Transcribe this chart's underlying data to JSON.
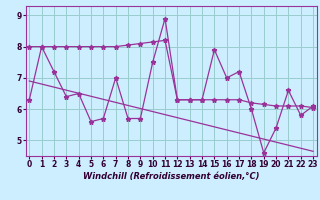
{
  "xlabel": "Windchill (Refroidissement éolien,°C)",
  "background_color": "#cceeff",
  "grid_color": "#99cccc",
  "line_color": "#993399",
  "hours": [
    0,
    1,
    2,
    3,
    4,
    5,
    6,
    7,
    8,
    9,
    10,
    11,
    12,
    13,
    14,
    15,
    16,
    17,
    18,
    19,
    20,
    21,
    22,
    23
  ],
  "values": [
    6.3,
    8.0,
    7.2,
    6.4,
    6.5,
    5.6,
    5.7,
    7.0,
    5.7,
    5.7,
    7.5,
    8.9,
    6.3,
    6.3,
    6.3,
    7.9,
    7.0,
    7.2,
    6.0,
    4.6,
    5.4,
    6.6,
    5.8,
    6.1
  ],
  "flat_line": [
    8.0,
    8.0,
    8.0,
    8.0,
    8.0,
    8.0,
    8.0,
    8.0,
    8.05,
    8.1,
    8.15,
    8.2,
    6.3,
    6.3,
    6.3,
    6.3,
    6.3,
    6.3,
    6.2,
    6.15,
    6.1,
    6.1,
    6.1,
    6.05
  ],
  "trend_x": [
    0,
    23
  ],
  "trend_y": [
    6.9,
    4.65
  ],
  "ylim": [
    4.5,
    9.3
  ],
  "xlim": [
    -0.3,
    23.3
  ],
  "yticks": [
    5,
    6,
    7,
    8,
    9
  ],
  "xticks": [
    0,
    1,
    2,
    3,
    4,
    5,
    6,
    7,
    8,
    9,
    10,
    11,
    12,
    13,
    14,
    15,
    16,
    17,
    18,
    19,
    20,
    21,
    22,
    23
  ],
  "tick_fontsize": 5.5,
  "xlabel_fontsize": 6.0
}
